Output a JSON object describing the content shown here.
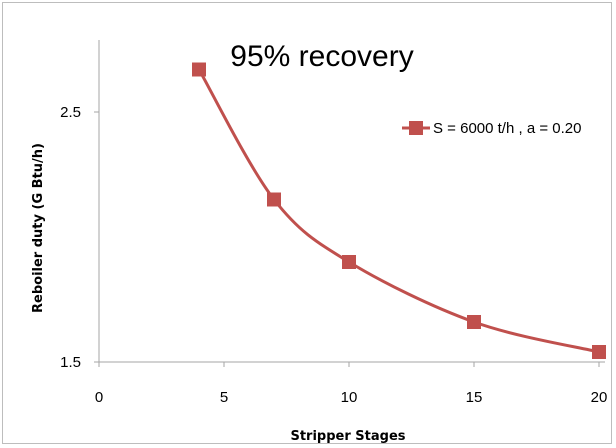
{
  "chart_data": {
    "type": "line",
    "title": "95% recovery",
    "xlabel": "Stripper Stages",
    "ylabel": "Reboiler duty  (G Btu/h)",
    "xlim": [
      0,
      20
    ],
    "ylim": [
      1.5,
      2.8
    ],
    "x_ticks": [
      0,
      5,
      10,
      15,
      20
    ],
    "y_ticks": [
      1.5,
      2.5
    ],
    "y_tick_labels": [
      "1.5",
      "2.5"
    ],
    "grid": false,
    "legend_position": "top-right",
    "series": [
      {
        "name": "S = 6000 t/h , a = 0.20",
        "color": "#c0504d",
        "marker": "square",
        "smooth": true,
        "x": [
          4,
          7,
          10,
          15,
          20
        ],
        "y": [
          2.67,
          2.15,
          1.9,
          1.66,
          1.54
        ]
      }
    ]
  }
}
